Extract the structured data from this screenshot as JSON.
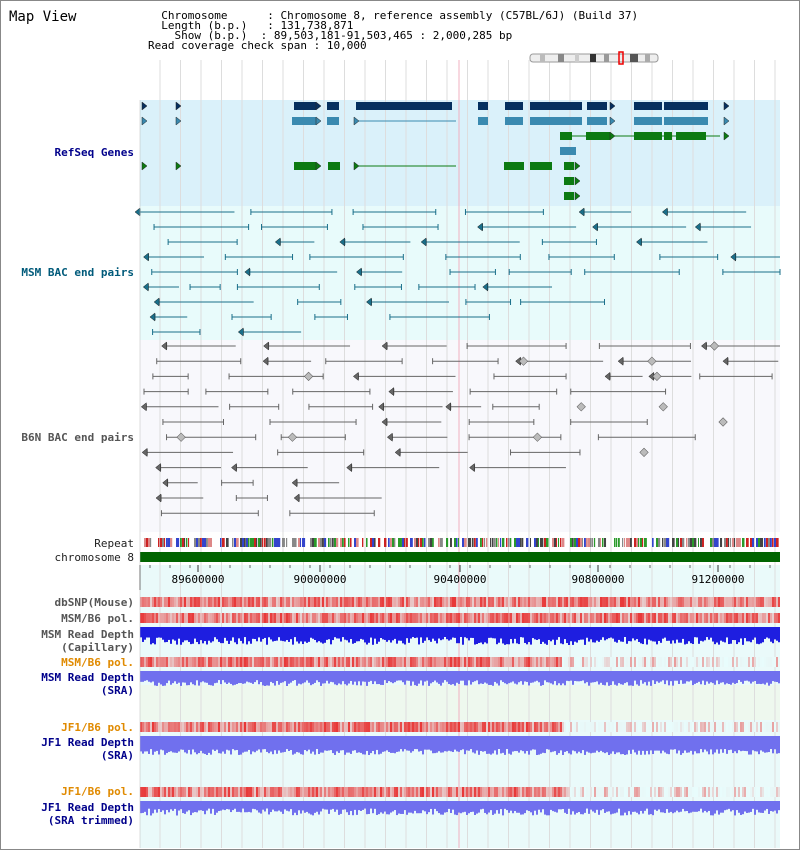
{
  "title": "Map View",
  "info": {
    "chromosome_label": "Chromosome",
    "chromosome_value": "Chromosome 8, reference assembly (C57BL/6J) (Build 37)",
    "length_label": "Length (b.p.)",
    "length_value": "131,738,871",
    "show_label": "Show (b.p.)",
    "show_value": "89,503,181-91,503,465 : 2,000,285 bp",
    "coverage_label": "Read coverage check span",
    "coverage_value": "10,000"
  },
  "tracks": {
    "refseq": "RefSeq Genes",
    "msm_bac": "MSM BAC end pairs",
    "b6n_bac": "B6N BAC end pairs",
    "repeat": "Repeat",
    "chromosome": "chromosome 8",
    "dbsnp": "dbSNP(Mouse)",
    "msm_b6_pol": "MSM/B6 pol.",
    "msm_read_depth_line1": "MSM Read Depth",
    "msm_read_depth_line2": "(Capillary)",
    "msm_b6_pol_sra": "MSM/B6 pol.",
    "msm_read_depth_sra_line1": "MSM Read Depth",
    "msm_read_depth_sra_line2": "(SRA)",
    "jf1_b6_pol": "JF1/B6 pol.",
    "jf1_read_depth_line1": "JF1 Read Depth",
    "jf1_read_depth_line2": "(SRA)",
    "jf1_b6_pol_trim": "JF1/B6 pol.",
    "jf1_read_depth_trim_line1": "JF1 Read Depth",
    "jf1_read_depth_trim_line2": "(SRA trimmed)"
  },
  "axis_ticks": [
    "89600000",
    "90000000",
    "90400000",
    "90800000",
    "91200000"
  ],
  "colors": {
    "refseq_bg": "#daf1fa",
    "bac_bg": "#e8fbfb",
    "grid": "#dddddd",
    "gene_dark": "#06305f",
    "gene_mid": "#3a8ab0",
    "gene_green": "#0c7a12",
    "bac_teal": "#1a6f8a",
    "bac_gray": "#666666",
    "chrom_green": "#006400",
    "depth_blue": "#1e1ee0",
    "depth_light": "#7070ee",
    "pol_red": "#e83030"
  }
}
